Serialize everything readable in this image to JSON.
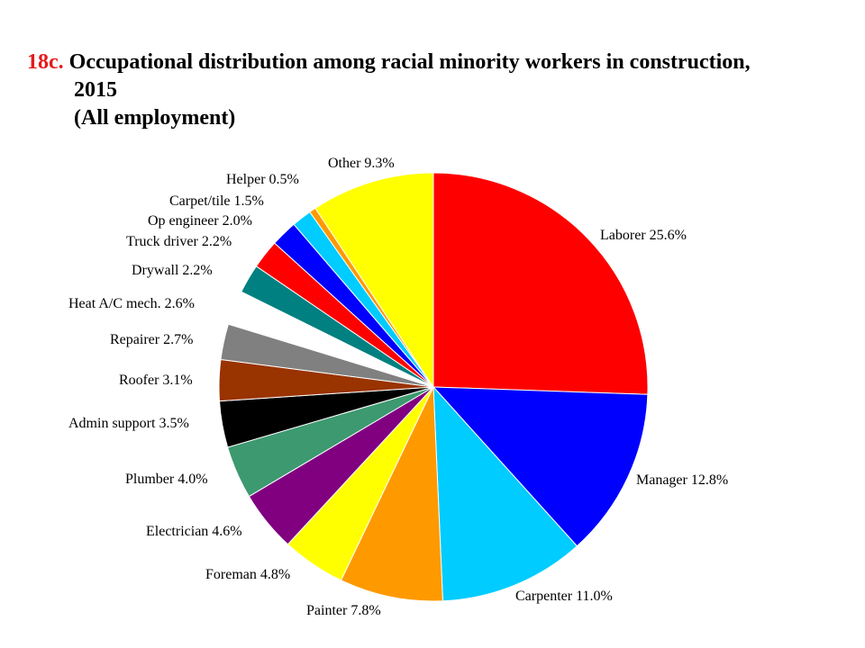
{
  "title": {
    "number": "18c.",
    "line1": "Occupational distribution among racial minority workers in construction,",
    "line2": "2015",
    "line3": "(All employment)"
  },
  "chart_data": {
    "type": "pie",
    "title": "Occupational distribution among racial minority workers in construction, 2015 (All employment)",
    "slices": [
      {
        "label": "Laborer 25.6%",
        "value": 25.6,
        "color": "#ff0000"
      },
      {
        "label": "Manager 12.8%",
        "value": 12.8,
        "color": "#0000ff"
      },
      {
        "label": "Carpenter 11.0%",
        "value": 11.0,
        "color": "#00ccff"
      },
      {
        "label": "Painter 7.8%",
        "value": 7.8,
        "color": "#ff9900"
      },
      {
        "label": "Foreman 4.8%",
        "value": 4.8,
        "color": "#ffff00"
      },
      {
        "label": "Electrician 4.6%",
        "value": 4.6,
        "color": "#800080"
      },
      {
        "label": "Plumber 4.0%",
        "value": 4.0,
        "color": "#3d9970"
      },
      {
        "label": "Admin support 3.5%",
        "value": 3.5,
        "color": "#000000"
      },
      {
        "label": "Roofer 3.1%",
        "value": 3.1,
        "color": "#993300"
      },
      {
        "label": "Repairer 2.7%",
        "value": 2.7,
        "color": "#808080"
      },
      {
        "label": "Heat A/C mech. 2.6%",
        "value": 2.6,
        "color": "#ffffff"
      },
      {
        "label": "Drywall 2.2%",
        "value": 2.2,
        "color": "#008080"
      },
      {
        "label": "Truck driver 2.2%",
        "value": 2.2,
        "color": "#ff0000"
      },
      {
        "label": "Op engineer 2.0%",
        "value": 2.0,
        "color": "#0000ff"
      },
      {
        "label": "Carpet/tile 1.5%",
        "value": 1.5,
        "color": "#00ccff"
      },
      {
        "label": "Helper 0.5%",
        "value": 0.5,
        "color": "#ff9900"
      },
      {
        "label": "Other 9.3%",
        "value": 9.3,
        "color": "#ffff00"
      }
    ]
  }
}
